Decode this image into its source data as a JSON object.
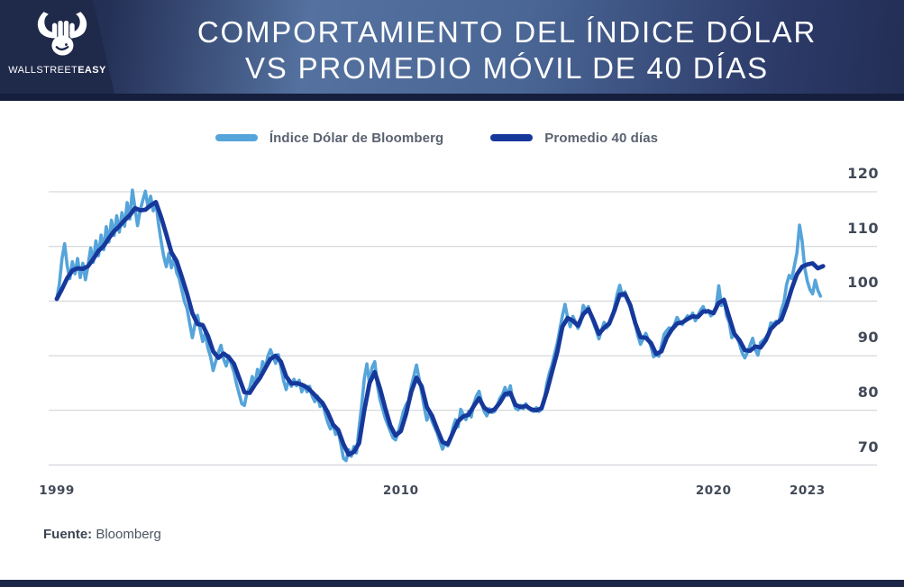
{
  "header": {
    "title_line1": "COMPORTAMIENTO DEL ÍNDICE DÓLAR",
    "title_line2": "VS PROMEDIO MÓVIL DE 40 DÍAS",
    "brand_regular": "WALLSTREET",
    "brand_bold": "EASY",
    "colors": {
      "navy": "#1f2949",
      "band_mid": "#54719f",
      "strip": "#151e3c"
    }
  },
  "legend": [
    {
      "label": "Índice Dólar de Bloomberg",
      "color": "#55a4da"
    },
    {
      "label": "Promedio 40 días",
      "color": "#17389b"
    }
  ],
  "source": {
    "label": "Fuente:",
    "value": "Bloomberg"
  },
  "chart_data": {
    "type": "line",
    "title": "Comportamiento del Índice Dólar vs Promedio Móvil de 40 días",
    "xlabel": "",
    "ylabel": "",
    "grid": true,
    "legend_position": "top",
    "x_ticks": [
      1999,
      2010,
      2020,
      2023
    ],
    "y_ticks": [
      120,
      110,
      100,
      90,
      80,
      70
    ],
    "xlim": [
      1999,
      2023.6
    ],
    "ylim": [
      66.5,
      122
    ],
    "grid_color": "#cbcfd4",
    "series": [
      {
        "name": "Índice Dólar de Bloomberg",
        "color": "#55a4da",
        "width": 3.6,
        "start_year": 1999,
        "points_per_year": 12,
        "values": [
          100.4,
          103.2,
          107.8,
          110.5,
          106.4,
          104.1,
          107.2,
          105.0,
          107.8,
          104.3,
          106.9,
          103.9,
          106.5,
          109.7,
          107.1,
          111.0,
          108.3,
          112.1,
          109.4,
          113.6,
          110.8,
          114.8,
          112.0,
          115.6,
          112.6,
          116.2,
          113.7,
          118.0,
          115.0,
          120.3,
          117.0,
          113.8,
          116.6,
          118.4,
          120.1,
          117.2,
          119.2,
          116.5,
          118.2,
          114.2,
          111.0,
          108.2,
          106.3,
          108.7,
          106.1,
          107.9,
          105.2,
          104.1,
          102.0,
          99.9,
          98.6,
          95.9,
          93.3,
          95.7,
          97.4,
          94.9,
          92.6,
          94.1,
          91.4,
          89.8,
          87.3,
          89.0,
          90.6,
          91.9,
          89.4,
          88.1,
          90.0,
          88.4,
          87.0,
          84.8,
          83.0,
          81.2,
          80.9,
          83.3,
          84.1,
          86.2,
          84.7,
          87.5,
          86.4,
          88.9,
          87.7,
          89.9,
          91.1,
          89.8,
          88.6,
          90.2,
          87.9,
          85.5,
          83.8,
          85.6,
          84.4,
          85.7,
          84.5,
          85.5,
          83.4,
          84.6,
          83.4,
          84.4,
          82.6,
          81.6,
          82.6,
          80.7,
          81.5,
          79.4,
          77.8,
          76.6,
          77.4,
          75.6,
          76.2,
          73.8,
          71.2,
          70.8,
          72.8,
          71.6,
          73.4,
          72.2,
          76.8,
          80.9,
          85.8,
          88.5,
          84.9,
          87.9,
          88.9,
          84.6,
          82.0,
          80.3,
          78.6,
          77.4,
          76.2,
          75.0,
          74.6,
          76.0,
          77.8,
          79.8,
          81.0,
          81.8,
          84.4,
          86.3,
          88.3,
          85.9,
          83.3,
          80.6,
          78.2,
          79.6,
          78.0,
          76.9,
          75.8,
          74.3,
          72.9,
          74.1,
          73.5,
          74.6,
          76.8,
          78.3,
          77.0,
          80.2,
          79.2,
          78.3,
          79.8,
          78.8,
          81.2,
          82.6,
          83.5,
          81.6,
          79.8,
          79.0,
          80.3,
          79.6,
          79.8,
          80.9,
          82.2,
          82.9,
          84.2,
          82.7,
          84.5,
          81.8,
          80.4,
          80.1,
          80.9,
          80.3,
          81.2,
          80.4,
          80.0,
          79.8,
          80.5,
          79.8,
          80.2,
          81.6,
          84.8,
          86.8,
          88.3,
          90.3,
          92.2,
          94.8,
          97.3,
          99.4,
          96.9,
          95.3,
          97.2,
          96.2,
          95.0,
          96.1,
          99.2,
          98.3,
          99.0,
          97.3,
          95.9,
          94.6,
          93.1,
          94.7,
          96.1,
          95.1,
          95.7,
          97.0,
          98.9,
          101.2,
          102.9,
          100.9,
          101.7,
          100.1,
          98.9,
          97.2,
          95.7,
          93.6,
          92.1,
          93.1,
          94.1,
          92.9,
          91.7,
          89.8,
          90.2,
          89.9,
          91.8,
          93.9,
          94.6,
          95.1,
          94.9,
          95.7,
          97.0,
          96.2,
          95.7,
          96.5,
          97.3,
          97.0,
          97.8,
          96.4,
          97.4,
          98.3,
          99.0,
          97.9,
          98.3,
          97.3,
          97.8,
          98.9,
          102.8,
          99.2,
          100.4,
          97.3,
          96.1,
          93.3,
          94.0,
          93.4,
          92.1,
          90.5,
          89.6,
          90.6,
          91.9,
          93.2,
          91.1,
          90.1,
          92.4,
          92.8,
          93.3,
          94.1,
          96.0,
          95.8,
          96.3,
          96.0,
          98.3,
          99.8,
          103.0,
          104.7,
          104.1,
          106.4,
          108.8,
          113.9,
          110.9,
          106.0,
          103.6,
          102.1,
          101.3,
          103.8,
          102.0,
          100.9
        ]
      },
      {
        "name": "Promedio 40 días",
        "color": "#17389b",
        "width": 4.8,
        "start_year": 1999,
        "points_per_year": 6,
        "values": [
          100.4,
          102.2,
          104.2,
          105.6,
          106.0,
          105.9,
          106.4,
          107.7,
          109.2,
          110.1,
          111.5,
          112.8,
          113.7,
          114.8,
          115.7,
          117.0,
          116.6,
          116.7,
          117.5,
          118.1,
          115.4,
          112.2,
          108.9,
          107.3,
          104.4,
          101.3,
          97.8,
          95.8,
          95.6,
          93.6,
          90.8,
          89.6,
          90.4,
          89.7,
          88.5,
          85.9,
          83.3,
          83.2,
          84.7,
          86.0,
          87.7,
          89.4,
          90.0,
          88.9,
          86.2,
          84.9,
          85.0,
          84.7,
          84.2,
          83.3,
          82.3,
          81.3,
          79.6,
          77.4,
          76.4,
          73.8,
          71.9,
          72.4,
          74.0,
          80.0,
          85.0,
          87.0,
          84.0,
          80.4,
          77.2,
          75.4,
          76.2,
          79.3,
          83.4,
          86.0,
          84.4,
          80.6,
          79.0,
          76.5,
          74.2,
          73.8,
          75.9,
          78.0,
          78.9,
          79.2,
          80.8,
          82.2,
          80.5,
          79.8,
          80.2,
          81.4,
          83.0,
          83.2,
          81.0,
          80.6,
          80.8,
          80.2,
          80.0,
          80.4,
          83.4,
          87.0,
          90.6,
          95.3,
          96.9,
          96.4,
          95.5,
          97.6,
          98.5,
          96.4,
          94.0,
          95.1,
          95.9,
          98.3,
          101.2,
          101.3,
          99.3,
          95.9,
          93.4,
          93.3,
          92.3,
          90.3,
          90.8,
          93.3,
          94.8,
          95.9,
          96.1,
          96.7,
          97.2,
          97.1,
          98.1,
          98.1,
          97.8,
          99.7,
          100.2,
          97.0,
          94.0,
          92.8,
          91.0,
          90.9,
          91.7,
          91.5,
          92.8,
          94.9,
          95.9,
          96.6,
          99.2,
          102.3,
          104.9,
          106.3,
          106.7,
          106.9,
          106.0,
          106.4
        ]
      }
    ]
  }
}
